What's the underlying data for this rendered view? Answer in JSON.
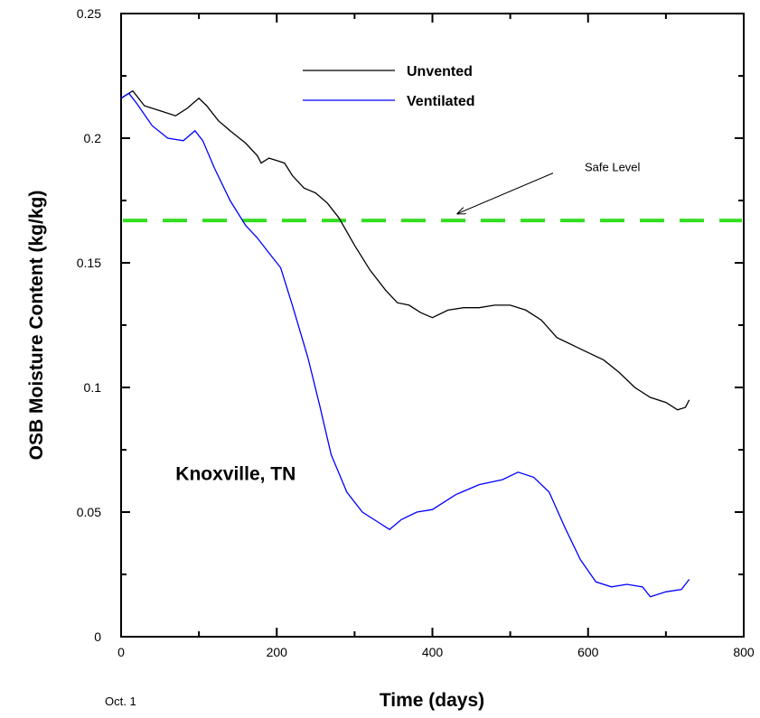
{
  "chart_data": {
    "type": "line",
    "xlabel": "Time (days)",
    "ylabel": "OSB Moisture Content (kg/kg)",
    "xlim": [
      0,
      800
    ],
    "ylim": [
      0,
      0.25
    ],
    "xticks": [
      0,
      200,
      400,
      600,
      800
    ],
    "yticks": [
      0,
      0.05,
      0.1,
      0.15,
      0.2,
      0.25
    ],
    "xtick_labels": [
      "0",
      "200",
      "400",
      "600",
      "800"
    ],
    "ytick_labels": [
      "0",
      "0.05",
      "0.1",
      "0.15",
      "0.2",
      "0.25"
    ],
    "x_start_label": "Oct. 1",
    "grid": false,
    "legend_position": "top-center",
    "series": [
      {
        "name": "Unvented",
        "color": "#000000",
        "x": [
          0,
          15,
          30,
          50,
          70,
          85,
          100,
          110,
          125,
          140,
          160,
          175,
          180,
          190,
          200,
          210,
          220,
          235,
          250,
          265,
          280,
          300,
          320,
          340,
          355,
          370,
          385,
          400,
          420,
          440,
          460,
          480,
          500,
          520,
          540,
          560,
          580,
          600,
          620,
          640,
          660,
          680,
          700,
          715,
          725,
          730
        ],
        "y": [
          0.216,
          0.219,
          0.213,
          0.211,
          0.209,
          0.212,
          0.216,
          0.213,
          0.207,
          0.203,
          0.198,
          0.193,
          0.19,
          0.192,
          0.191,
          0.19,
          0.185,
          0.18,
          0.178,
          0.174,
          0.168,
          0.157,
          0.147,
          0.139,
          0.134,
          0.133,
          0.13,
          0.128,
          0.131,
          0.132,
          0.132,
          0.133,
          0.133,
          0.131,
          0.127,
          0.12,
          0.117,
          0.114,
          0.111,
          0.106,
          0.1,
          0.096,
          0.094,
          0.091,
          0.092,
          0.095
        ]
      },
      {
        "name": "Ventilated",
        "color": "#0000ff",
        "x": [
          0,
          10,
          20,
          40,
          60,
          80,
          95,
          105,
          120,
          140,
          160,
          175,
          190,
          205,
          220,
          240,
          255,
          270,
          290,
          310,
          330,
          345,
          360,
          380,
          400,
          430,
          460,
          490,
          510,
          530,
          550,
          570,
          590,
          610,
          630,
          650,
          670,
          680,
          700,
          720,
          730
        ],
        "y": [
          0.216,
          0.218,
          0.214,
          0.205,
          0.2,
          0.199,
          0.203,
          0.199,
          0.188,
          0.175,
          0.165,
          0.16,
          0.154,
          0.148,
          0.133,
          0.112,
          0.093,
          0.073,
          0.058,
          0.05,
          0.046,
          0.043,
          0.047,
          0.05,
          0.051,
          0.057,
          0.061,
          0.063,
          0.066,
          0.064,
          0.058,
          0.044,
          0.031,
          0.022,
          0.02,
          0.021,
          0.02,
          0.016,
          0.018,
          0.019,
          0.023
        ]
      }
    ],
    "reference_lines": [
      {
        "y": 0.167,
        "color": "#33dd22",
        "style": "dashed"
      }
    ],
    "annotations": [
      {
        "text": "Safe Level",
        "x": 555,
        "y": 0.186,
        "arrow_to": [
          430,
          0.169
        ]
      },
      {
        "text": "Knoxville, TN",
        "x": 70,
        "y": 0.06
      }
    ],
    "legend": [
      {
        "label": "Unvented",
        "color": "#000000"
      },
      {
        "label": "Ventilated",
        "color": "#0000ff"
      }
    ]
  }
}
